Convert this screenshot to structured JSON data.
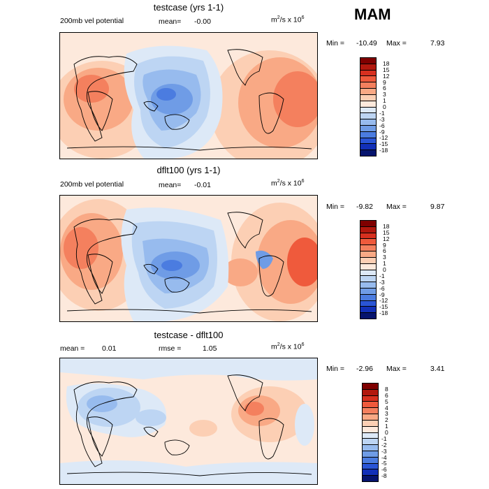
{
  "season": "MAM",
  "panels": [
    {
      "title": "testcase (yrs 1-1)",
      "variable": "200mb vel potential",
      "mean_label": "mean=",
      "mean_value": "-0.00",
      "units_base": "m",
      "units_exp1": "2",
      "units_mid": "/s x 10",
      "units_exp2": "6",
      "min_label": "Min =",
      "min_value": "-10.49",
      "max_label": "Max =",
      "max_value": "7.93",
      "levels": [
        "18",
        "15",
        "12",
        "9",
        "6",
        "3",
        "1",
        "0",
        "-1",
        "-3",
        "-6",
        "-9",
        "-12",
        "-15",
        "-18"
      ]
    },
    {
      "title": "dflt100 (yrs 1-1)",
      "variable": "200mb vel potential",
      "mean_label": "mean=",
      "mean_value": "-0.01",
      "units_base": "m",
      "units_exp1": "2",
      "units_mid": "/s x 10",
      "units_exp2": "6",
      "min_label": "Min =",
      "min_value": "-9.82",
      "max_label": "Max =",
      "max_value": "9.87",
      "levels": [
        "18",
        "15",
        "12",
        "9",
        "6",
        "3",
        "1",
        "0",
        "-1",
        "-3",
        "-6",
        "-9",
        "-12",
        "-15",
        "-18"
      ]
    },
    {
      "title": "testcase - dflt100",
      "mean_label": "mean =",
      "mean_value": "0.01",
      "rmse_label": "rmse =",
      "rmse_value": "1.05",
      "units_base": "m",
      "units_exp1": "2",
      "units_mid": "/s x 10",
      "units_exp2": "6",
      "min_label": "Min =",
      "min_value": "-2.96",
      "max_label": "Max =",
      "max_value": "3.41",
      "levels": [
        "8",
        "6",
        "5",
        "4",
        "3",
        "2",
        "1",
        "0",
        "-1",
        "-2",
        "-3",
        "-4",
        "-5",
        "-6",
        "-8"
      ]
    }
  ],
  "colors": {
    "scale16": [
      "#7f0000",
      "#b2180e",
      "#d7301f",
      "#ef5a3c",
      "#f4805e",
      "#f9a985",
      "#fccfb4",
      "#fde9dc",
      "#dde9f7",
      "#bdd5f3",
      "#97bbee",
      "#6f9ce6",
      "#4b7ce0",
      "#2a55d6",
      "#1230b8",
      "#06146e"
    ],
    "land_outline": "#000000"
  }
}
